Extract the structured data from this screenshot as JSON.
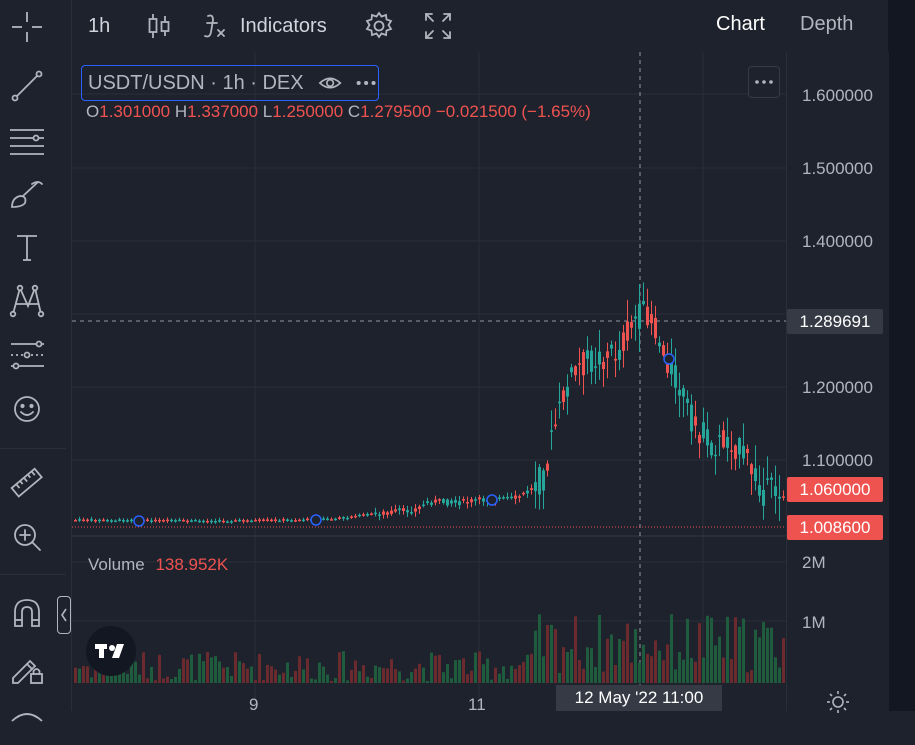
{
  "toolbar": {
    "interval": "1h",
    "indicators_label": "Indicators",
    "tabs": [
      {
        "label": "Chart",
        "active": true
      },
      {
        "label": "Depth",
        "active": false
      }
    ]
  },
  "legend": {
    "title": "USDT/USDN · 1h · DEX",
    "ohlc": {
      "o_key": "O",
      "o": "1.301000",
      "h_key": "H",
      "h": "1.337000",
      "l_key": "L",
      "l": "1.250000",
      "c_key": "C",
      "c": "1.279500",
      "change": "−0.021500 (−1.65%)"
    },
    "volume_label": "Volume",
    "volume_value": "138.952K"
  },
  "price_axis": {
    "labels": [
      "1.600000",
      "1.500000",
      "1.400000",
      "1.200000",
      "1.100000"
    ],
    "crosshair_price": "1.289691",
    "last_price_tag": "1.060000",
    "low_price_tag": "1.008600",
    "volume_labels": [
      "2M",
      "1M"
    ]
  },
  "time_axis": {
    "labels": [
      "9",
      "11"
    ],
    "crosshair_time": "12 May '22   11:00"
  },
  "colors": {
    "up": "#26a69a",
    "down": "#ef5350",
    "background": "#1e222d",
    "accent": "#2962ff"
  },
  "icons": {
    "left_rail": [
      "crosshair-icon",
      "trend-line-icon",
      "fib-levels-icon",
      "brush-icon",
      "text-icon",
      "pattern-icon",
      "prediction-icon",
      "emoji-icon",
      "ruler-icon",
      "zoom-in-icon",
      "magnet-icon",
      "lock-drawings-icon"
    ]
  }
}
